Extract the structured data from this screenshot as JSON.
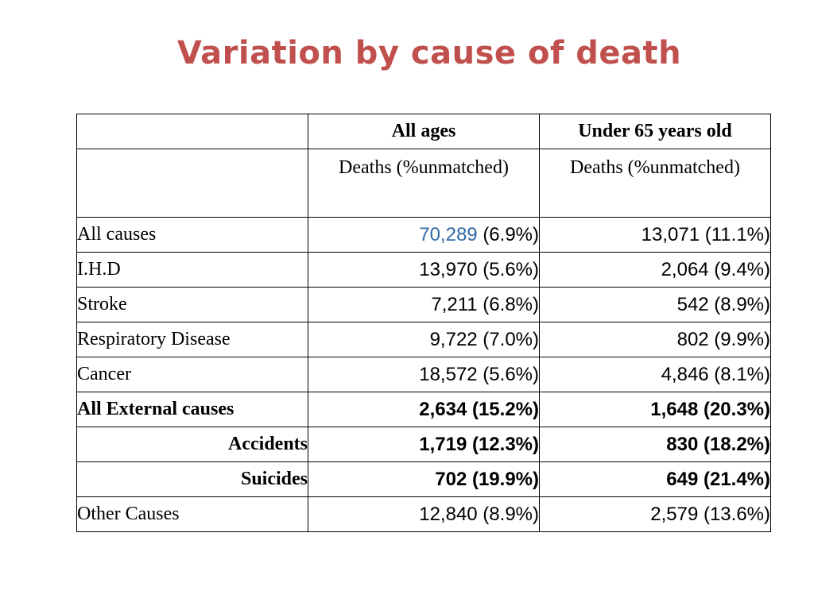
{
  "title": "Variation by cause of death",
  "table": {
    "headers": [
      "",
      "All ages",
      "Under 65 years old"
    ],
    "subheaders": [
      "",
      "Deaths (%unmatched)",
      "Deaths (%unmatched)"
    ],
    "rows": [
      {
        "label": "All causes",
        "all_ages_count": "70,289",
        "all_ages_pct": "(6.9%)",
        "under65": "13,071 (11.1%)"
      },
      {
        "label": "I.H.D",
        "all_ages": "13,970 (5.6%)",
        "under65": "2,064 (9.4%)"
      },
      {
        "label": "Stroke",
        "all_ages": "7,211 (6.8%)",
        "under65": "542 (8.9%)"
      },
      {
        "label": "Respiratory Disease",
        "all_ages": "9,722 (7.0%)",
        "under65": "802 (9.9%)"
      },
      {
        "label": "Cancer",
        "all_ages": "18,572 (5.6%)",
        "under65": "4,846 (8.1%)"
      },
      {
        "label": "All External causes",
        "all_ages": "2,634 (15.2%)",
        "under65": "1,648 (20.3%)"
      },
      {
        "label": "Accidents",
        "all_ages": "1,719 (12.3%)",
        "under65": "830 (18.2%)"
      },
      {
        "label": "Suicides",
        "all_ages": "702 (19.9%)",
        "under65": "649 (21.4%)"
      },
      {
        "label": "Other Causes",
        "all_ages": "12,840 (8.9%)",
        "under65": "2,579 (13.6%)"
      }
    ]
  },
  "colors": {
    "title": "#c0504d",
    "header": "#6b1a6b",
    "highlight_number": "#2e6aa6"
  }
}
